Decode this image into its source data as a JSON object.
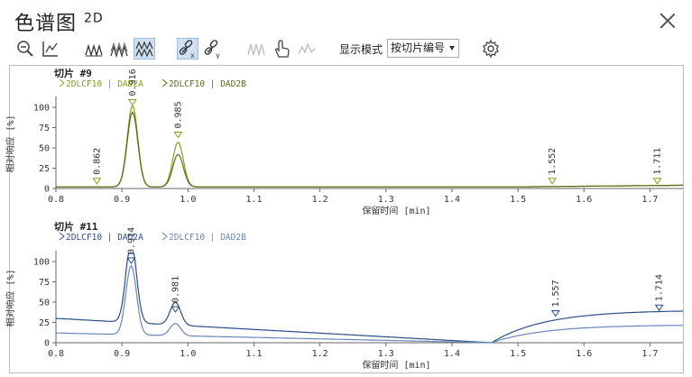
{
  "window": {
    "title": "色谱图",
    "title_sup": "2D"
  },
  "toolbar": {
    "display_mode_label": "显示模式",
    "display_mode_value": "按切片编号"
  },
  "charts": [
    {
      "slice_title": "切片 #9",
      "legend": [
        "2DLCF10 | DAD2A",
        "2DLCF10 | DAD2B"
      ],
      "ylabel": "相对响应 [%]",
      "xlabel": "保留时间 [min]",
      "peak_labels": [
        "0.862",
        "0.916",
        "0.985",
        "1.552",
        "1.711"
      ]
    },
    {
      "slice_title": "切片 #11",
      "legend": [
        "2DLCF10 | DAD2A",
        "2DLCF10 | DAD2B"
      ],
      "ylabel": "相对响应 [%]",
      "xlabel": "保留时间 [min]",
      "peak_labels": [
        "0.914",
        "0.981",
        "1.557",
        "1.714"
      ]
    }
  ],
  "chart_data": [
    {
      "type": "line",
      "title": "切片 #9",
      "xlabel": "保留时间 [min]",
      "ylabel": "相对响应 [%]",
      "xlim": [
        0.8,
        1.75
      ],
      "ylim": [
        0,
        110
      ],
      "xticks": [
        0.8,
        0.9,
        1.0,
        1.1,
        1.2,
        1.3,
        1.4,
        1.5,
        1.6,
        1.7
      ],
      "yticks": [
        0,
        25,
        50,
        75,
        100
      ],
      "colors": [
        "#8a9a1c",
        "#5c6b1a"
      ],
      "series": [
        {
          "name": "2DLCF10 | DAD2A",
          "peaks": [
            [
              0.916,
              100
            ],
            [
              0.985,
              55
            ]
          ]
        },
        {
          "name": "2DLCF10 | DAD2B",
          "peaks": [
            [
              0.916,
              92
            ],
            [
              0.985,
              40
            ]
          ]
        }
      ],
      "peak_markers": [
        [
          0.862,
          8
        ],
        [
          0.916,
          105
        ],
        [
          0.985,
          65
        ],
        [
          1.552,
          8
        ],
        [
          1.711,
          8
        ]
      ]
    },
    {
      "type": "line",
      "title": "切片 #11",
      "xlabel": "保留时间 [min]",
      "ylabel": "相对响应 [%]",
      "xlim": [
        0.8,
        1.75
      ],
      "ylim": [
        0,
        110
      ],
      "xticks": [
        0.8,
        0.9,
        1.0,
        1.1,
        1.2,
        1.3,
        1.4,
        1.5,
        1.6,
        1.7
      ],
      "yticks": [
        0,
        25,
        50,
        75,
        100
      ],
      "colors": [
        "#2a4d86",
        "#6a86b8"
      ],
      "series": [
        {
          "name": "2DLCF10 | DAD2A",
          "peaks": [
            [
              0.914,
              100
            ],
            [
              0.981,
              28
            ]
          ]
        },
        {
          "name": "2DLCF10 | DAD2B",
          "peaks": [
            [
              0.914,
              85
            ],
            [
              0.981,
              15
            ]
          ]
        }
      ],
      "peak_markers": [
        [
          0.914,
          100
        ],
        [
          0.981,
          40
        ],
        [
          1.557,
          35
        ],
        [
          1.714,
          42
        ]
      ]
    }
  ]
}
